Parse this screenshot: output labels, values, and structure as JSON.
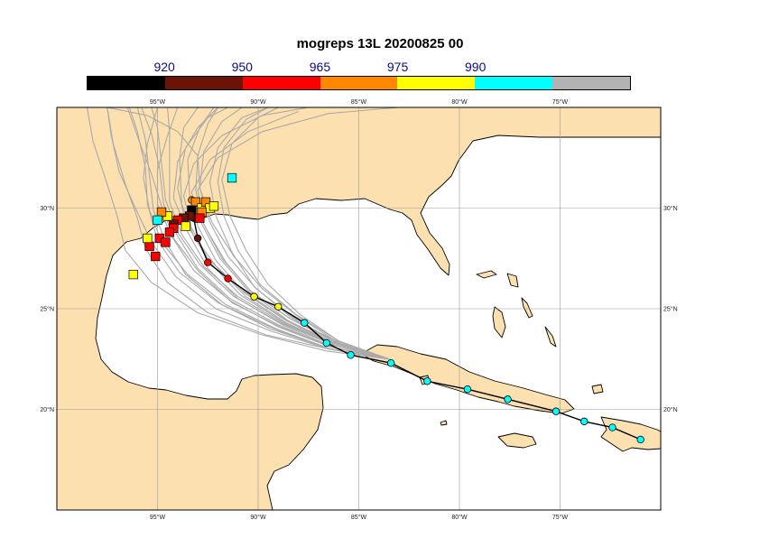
{
  "title": "mogreps 13L 20200825 00",
  "colorbar": {
    "colors": [
      "#000000",
      "#6b1306",
      "#ff0000",
      "#ff8800",
      "#ffff00",
      "#00ffff",
      "#b3b3b3"
    ],
    "labels": [
      "920",
      "950",
      "965",
      "975",
      "990"
    ]
  },
  "map": {
    "lon_range": [
      -100,
      -70
    ],
    "lat_range": [
      15,
      35
    ],
    "lon_ticks": [
      "95°W",
      "90°W",
      "85°W",
      "80°W",
      "75°W"
    ],
    "lat_ticks": [
      "30°N",
      "25°N",
      "20°N"
    ],
    "land_color": "#fde0b0",
    "sea_color": "#ffffff",
    "track_color": "#aaaaaa",
    "analysis_track": [
      {
        "lon": -71.0,
        "lat": 18.5,
        "color": "#00ffff"
      },
      {
        "lon": -72.4,
        "lat": 19.1,
        "color": "#00ffff"
      },
      {
        "lon": -73.8,
        "lat": 19.4,
        "color": "#00ffff"
      },
      {
        "lon": -75.2,
        "lat": 19.9,
        "color": "#00ffff"
      },
      {
        "lon": -77.6,
        "lat": 20.5,
        "color": "#00ffff"
      },
      {
        "lon": -79.6,
        "lat": 21.0,
        "color": "#00ffff"
      },
      {
        "lon": -81.6,
        "lat": 21.4,
        "color": "#00ffff"
      },
      {
        "lon": -83.4,
        "lat": 22.3,
        "color": "#00ffff"
      },
      {
        "lon": -85.4,
        "lat": 22.7,
        "color": "#00ffff"
      },
      {
        "lon": -86.6,
        "lat": 23.3,
        "color": "#00ffff"
      },
      {
        "lon": -87.7,
        "lat": 24.3,
        "color": "#00ffff"
      },
      {
        "lon": -89.0,
        "lat": 25.1,
        "color": "#ffff00"
      },
      {
        "lon": -90.2,
        "lat": 25.6,
        "color": "#ffff00"
      },
      {
        "lon": -91.5,
        "lat": 26.5,
        "color": "#ff0000"
      },
      {
        "lon": -92.5,
        "lat": 27.3,
        "color": "#ff0000"
      },
      {
        "lon": -93.0,
        "lat": 28.5,
        "color": "#6b1306"
      },
      {
        "lon": -93.2,
        "lat": 29.5,
        "color": "#6b1306"
      },
      {
        "lon": -93.3,
        "lat": 30.4,
        "color": "#ff8800"
      }
    ],
    "landfall_squares": [
      {
        "lon": -91.3,
        "lat": 31.5,
        "color": "#00ffff"
      },
      {
        "lon": -93.1,
        "lat": 30.3,
        "color": "#ff8800"
      },
      {
        "lon": -92.8,
        "lat": 30.0,
        "color": "#ffff00"
      },
      {
        "lon": -92.6,
        "lat": 30.3,
        "color": "#ff8800"
      },
      {
        "lon": -92.4,
        "lat": 30.0,
        "color": "#ffff00"
      },
      {
        "lon": -92.2,
        "lat": 30.1,
        "color": "#ffff00"
      },
      {
        "lon": -92.8,
        "lat": 29.8,
        "color": "#ff8800"
      },
      {
        "lon": -93.3,
        "lat": 29.9,
        "color": "#000000"
      },
      {
        "lon": -93.4,
        "lat": 29.6,
        "color": "#6b1306"
      },
      {
        "lon": -93.7,
        "lat": 29.5,
        "color": "#6b1306"
      },
      {
        "lon": -94.0,
        "lat": 29.4,
        "color": "#ff0000"
      },
      {
        "lon": -94.2,
        "lat": 29.2,
        "color": "#6b1306"
      },
      {
        "lon": -93.6,
        "lat": 29.1,
        "color": "#ffff00"
      },
      {
        "lon": -94.5,
        "lat": 29.6,
        "color": "#ffff00"
      },
      {
        "lon": -94.2,
        "lat": 29.0,
        "color": "#ff0000"
      },
      {
        "lon": -94.4,
        "lat": 28.8,
        "color": "#ff0000"
      },
      {
        "lon": -94.8,
        "lat": 29.8,
        "color": "#ff8800"
      },
      {
        "lon": -95.0,
        "lat": 29.4,
        "color": "#00ffff"
      },
      {
        "lon": -94.9,
        "lat": 28.5,
        "color": "#ff0000"
      },
      {
        "lon": -94.6,
        "lat": 28.3,
        "color": "#ff0000"
      },
      {
        "lon": -95.1,
        "lat": 27.6,
        "color": "#ff0000"
      },
      {
        "lon": -95.4,
        "lat": 28.1,
        "color": "#ff0000"
      },
      {
        "lon": -95.5,
        "lat": 28.5,
        "color": "#ffff00"
      },
      {
        "lon": -96.2,
        "lat": 26.7,
        "color": "#ffff00"
      },
      {
        "lon": -92.9,
        "lat": 29.5,
        "color": "#ff0000"
      }
    ],
    "ensemble_tracks": [
      [
        [
          -83.5,
          22.5
        ],
        [
          -86.2,
          23.2
        ],
        [
          -88.6,
          24.3
        ],
        [
          -90.6,
          25.6
        ],
        [
          -92.0,
          27.0
        ],
        [
          -93.2,
          28.6
        ],
        [
          -93.8,
          30.2
        ],
        [
          -93.9,
          32.5
        ],
        [
          -93.7,
          34.0
        ],
        [
          -93.0,
          35.0
        ]
      ],
      [
        [
          -83.5,
          22.5
        ],
        [
          -86.4,
          23.1
        ],
        [
          -89.0,
          24.2
        ],
        [
          -91.4,
          25.5
        ],
        [
          -93.0,
          27.0
        ],
        [
          -94.0,
          28.6
        ],
        [
          -94.7,
          30.2
        ],
        [
          -94.9,
          32.0
        ],
        [
          -95.3,
          33.7
        ],
        [
          -95.8,
          35.0
        ]
      ],
      [
        [
          -83.5,
          22.5
        ],
        [
          -86.0,
          23.3
        ],
        [
          -88.0,
          24.6
        ],
        [
          -89.8,
          26.0
        ],
        [
          -91.2,
          27.6
        ],
        [
          -92.3,
          29.3
        ],
        [
          -92.9,
          31.0
        ],
        [
          -92.7,
          32.8
        ],
        [
          -91.8,
          34.3
        ],
        [
          -90.8,
          35.0
        ]
      ],
      [
        [
          -83.5,
          22.5
        ],
        [
          -86.4,
          23.0
        ],
        [
          -89.4,
          24.0
        ],
        [
          -92.0,
          25.3
        ],
        [
          -93.9,
          26.8
        ],
        [
          -95.0,
          28.4
        ],
        [
          -95.5,
          30.2
        ],
        [
          -95.6,
          32.0
        ],
        [
          -96.0,
          33.8
        ],
        [
          -96.4,
          35.0
        ]
      ],
      [
        [
          -83.5,
          22.5
        ],
        [
          -86.1,
          23.4
        ],
        [
          -88.4,
          24.5
        ],
        [
          -90.3,
          25.8
        ],
        [
          -91.6,
          27.3
        ],
        [
          -92.6,
          29.0
        ],
        [
          -93.4,
          30.6
        ],
        [
          -93.5,
          32.4
        ],
        [
          -92.9,
          34.0
        ],
        [
          -92.2,
          35.0
        ]
      ],
      [
        [
          -83.5,
          22.5
        ],
        [
          -86.5,
          23.0
        ],
        [
          -89.6,
          23.7
        ],
        [
          -92.5,
          24.8
        ],
        [
          -94.5,
          26.3
        ],
        [
          -95.6,
          28.0
        ],
        [
          -96.0,
          29.5
        ],
        [
          -96.6,
          31.2
        ],
        [
          -97.2,
          33.2
        ],
        [
          -97.5,
          35.0
        ]
      ],
      [
        [
          -83.5,
          22.5
        ],
        [
          -86.0,
          23.4
        ],
        [
          -87.9,
          24.7
        ],
        [
          -89.5,
          26.2
        ],
        [
          -90.6,
          27.9
        ],
        [
          -91.4,
          29.6
        ],
        [
          -91.8,
          31.4
        ],
        [
          -91.3,
          33.2
        ],
        [
          -90.0,
          34.5
        ],
        [
          -89.0,
          35.0
        ]
      ],
      [
        [
          -83.5,
          22.5
        ],
        [
          -86.3,
          23.1
        ],
        [
          -88.8,
          24.2
        ],
        [
          -91.0,
          25.5
        ],
        [
          -92.5,
          27.0
        ],
        [
          -93.5,
          28.8
        ],
        [
          -94.2,
          30.5
        ],
        [
          -94.0,
          32.3
        ],
        [
          -93.0,
          34.0
        ],
        [
          -92.0,
          35.0
        ]
      ],
      [
        [
          -83.5,
          22.5
        ],
        [
          -86.3,
          23.3
        ],
        [
          -88.7,
          24.5
        ],
        [
          -90.9,
          26.0
        ],
        [
          -92.6,
          27.6
        ],
        [
          -93.6,
          29.3
        ],
        [
          -94.0,
          31.0
        ],
        [
          -93.6,
          33.0
        ],
        [
          -92.5,
          34.5
        ],
        [
          -91.5,
          35.0
        ]
      ],
      [
        [
          -83.5,
          22.5
        ],
        [
          -86.6,
          22.9
        ],
        [
          -89.8,
          23.7
        ],
        [
          -93.0,
          24.8
        ],
        [
          -95.3,
          26.3
        ],
        [
          -96.6,
          27.9
        ],
        [
          -97.0,
          29.6
        ],
        [
          -97.6,
          31.5
        ],
        [
          -98.2,
          33.3
        ],
        [
          -98.5,
          35.0
        ]
      ],
      [
        [
          -83.5,
          22.5
        ],
        [
          -86.2,
          23.2
        ],
        [
          -88.4,
          24.6
        ],
        [
          -90.2,
          26.1
        ],
        [
          -91.3,
          27.8
        ],
        [
          -92.1,
          29.6
        ],
        [
          -92.4,
          31.3
        ],
        [
          -92.0,
          33.0
        ],
        [
          -90.8,
          34.5
        ],
        [
          -89.5,
          35.0
        ]
      ],
      [
        [
          -83.5,
          22.5
        ],
        [
          -86.3,
          23.2
        ],
        [
          -88.9,
          24.3
        ],
        [
          -91.2,
          25.6
        ],
        [
          -92.9,
          27.2
        ],
        [
          -94.0,
          28.8
        ],
        [
          -94.6,
          30.4
        ],
        [
          -94.8,
          32.2
        ],
        [
          -95.0,
          34.0
        ],
        [
          -95.3,
          35.0
        ]
      ],
      [
        [
          -83.5,
          22.5
        ],
        [
          -86.5,
          23.0
        ],
        [
          -89.2,
          24.0
        ],
        [
          -91.8,
          25.2
        ],
        [
          -93.6,
          26.7
        ],
        [
          -94.6,
          28.3
        ],
        [
          -95.2,
          29.9
        ],
        [
          -95.4,
          31.6
        ],
        [
          -95.6,
          33.4
        ],
        [
          -96.0,
          35.0
        ]
      ],
      [
        [
          -83.5,
          22.5
        ],
        [
          -86.1,
          23.3
        ],
        [
          -88.3,
          24.6
        ],
        [
          -90.1,
          26.0
        ],
        [
          -91.5,
          27.6
        ],
        [
          -92.4,
          29.3
        ],
        [
          -92.9,
          31.0
        ],
        [
          -93.0,
          32.6
        ],
        [
          -94.0,
          33.8
        ],
        [
          -95.5,
          34.6
        ],
        [
          -97.5,
          35.0
        ]
      ],
      [
        [
          -83.5,
          22.5
        ],
        [
          -86.2,
          23.2
        ],
        [
          -88.6,
          24.4
        ],
        [
          -90.7,
          25.8
        ],
        [
          -92.1,
          27.4
        ],
        [
          -93.0,
          29.1
        ],
        [
          -93.3,
          30.8
        ],
        [
          -92.4,
          32.4
        ],
        [
          -90.5,
          33.8
        ],
        [
          -88.0,
          34.8
        ]
      ],
      [
        [
          -83.5,
          22.5
        ],
        [
          -86.4,
          23.1
        ],
        [
          -89.0,
          24.1
        ],
        [
          -91.4,
          25.4
        ],
        [
          -93.2,
          26.9
        ],
        [
          -94.3,
          28.6
        ],
        [
          -95.0,
          30.2
        ],
        [
          -95.0,
          31.9
        ],
        [
          -94.5,
          33.6
        ],
        [
          -94.0,
          35.0
        ]
      ],
      [
        [
          -83.5,
          22.5
        ],
        [
          -86.3,
          23.2
        ],
        [
          -88.7,
          24.3
        ],
        [
          -90.9,
          25.7
        ],
        [
          -92.4,
          27.3
        ],
        [
          -93.3,
          29.0
        ],
        [
          -93.7,
          30.6
        ],
        [
          -93.2,
          32.2
        ],
        [
          -91.8,
          33.6
        ],
        [
          -89.8,
          34.6
        ],
        [
          -87.5,
          35.0
        ]
      ],
      [
        [
          -83.5,
          22.5
        ],
        [
          -86.5,
          23.0
        ],
        [
          -89.4,
          23.9
        ],
        [
          -92.1,
          25.0
        ],
        [
          -94.1,
          26.6
        ],
        [
          -95.3,
          28.3
        ],
        [
          -96.1,
          30.0
        ],
        [
          -96.9,
          31.8
        ],
        [
          -97.3,
          33.6
        ],
        [
          -97.5,
          35.0
        ]
      ],
      [
        [
          -83.5,
          22.5
        ],
        [
          -86.0,
          23.4
        ],
        [
          -88.1,
          24.7
        ],
        [
          -89.9,
          26.2
        ],
        [
          -91.0,
          27.9
        ],
        [
          -91.7,
          29.6
        ],
        [
          -92.0,
          31.3
        ],
        [
          -91.7,
          33.0
        ],
        [
          -90.6,
          34.4
        ],
        [
          -89.5,
          35.0
        ]
      ],
      [
        [
          -83.5,
          22.5
        ],
        [
          -86.3,
          23.1
        ],
        [
          -88.9,
          24.1
        ],
        [
          -91.3,
          25.3
        ],
        [
          -93.0,
          26.9
        ],
        [
          -94.2,
          28.5
        ],
        [
          -94.8,
          30.1
        ],
        [
          -95.3,
          31.7
        ],
        [
          -95.9,
          33.3
        ],
        [
          -96.5,
          35.0
        ]
      ],
      [
        [
          -83.5,
          22.5
        ],
        [
          -86.2,
          23.3
        ],
        [
          -88.5,
          24.4
        ],
        [
          -90.5,
          25.9
        ],
        [
          -91.9,
          27.5
        ],
        [
          -92.8,
          29.2
        ],
        [
          -93.1,
          30.9
        ],
        [
          -93.0,
          32.6
        ],
        [
          -92.5,
          34.2
        ],
        [
          -92.0,
          35.0
        ]
      ],
      [
        [
          -83.5,
          22.5
        ],
        [
          -86.4,
          23.0
        ],
        [
          -89.1,
          24.0
        ],
        [
          -91.6,
          25.2
        ],
        [
          -93.5,
          26.7
        ],
        [
          -94.8,
          28.3
        ],
        [
          -95.4,
          29.9
        ],
        [
          -95.7,
          31.5
        ],
        [
          -95.5,
          33.2
        ],
        [
          -95.0,
          35.0
        ]
      ],
      [
        [
          -83.5,
          22.5
        ],
        [
          -86.1,
          23.3
        ],
        [
          -88.4,
          24.5
        ],
        [
          -90.4,
          25.9
        ],
        [
          -91.8,
          27.5
        ],
        [
          -92.7,
          29.2
        ],
        [
          -93.0,
          30.9
        ],
        [
          -92.0,
          32.5
        ],
        [
          -89.8,
          33.8
        ],
        [
          -86.5,
          34.7
        ],
        [
          -83.0,
          35.0
        ]
      ],
      [
        [
          -83.5,
          22.5
        ],
        [
          -86.3,
          23.2
        ],
        [
          -88.8,
          24.3
        ],
        [
          -91.0,
          25.6
        ],
        [
          -92.7,
          27.1
        ],
        [
          -93.8,
          28.7
        ],
        [
          -94.4,
          30.3
        ],
        [
          -94.4,
          32.0
        ],
        [
          -94.4,
          33.7
        ],
        [
          -94.5,
          35.0
        ]
      ]
    ]
  }
}
